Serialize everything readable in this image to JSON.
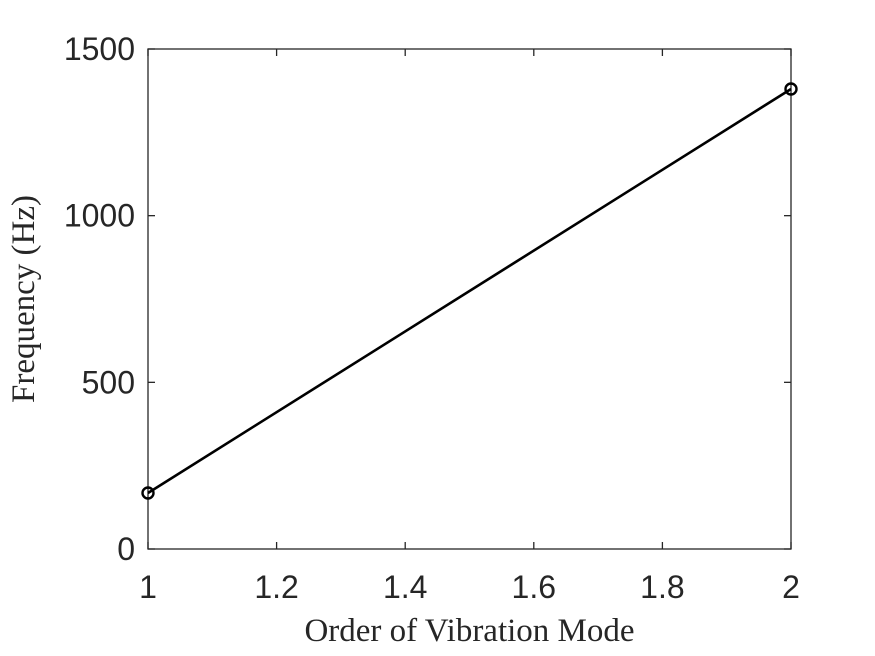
{
  "chart_data": {
    "type": "line",
    "xlabel": "Order of Vibration Mode",
    "ylabel": "Frequency (Hz)",
    "xlim": [
      1,
      2
    ],
    "ylim": [
      0,
      1500
    ],
    "xticks": [
      "1",
      "1.2",
      "1.4",
      "1.6",
      "1.8",
      "2"
    ],
    "yticks": [
      "0",
      "500",
      "1000",
      "1500"
    ],
    "grid": false,
    "series": [
      {
        "x": [
          1,
          2
        ],
        "y": [
          168,
          1380
        ],
        "marker": "circle",
        "color": "#000000"
      }
    ]
  }
}
